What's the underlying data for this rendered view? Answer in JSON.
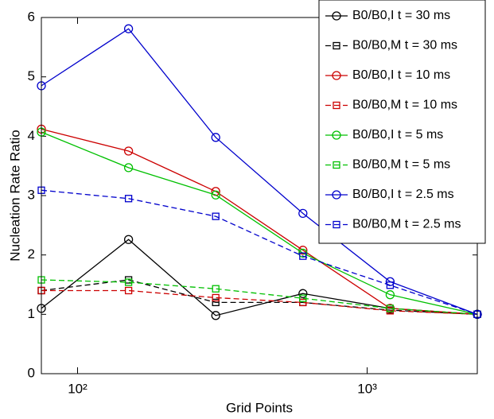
{
  "chart_data": {
    "type": "line",
    "x_label": "Grid Points",
    "y_label": "Nucleation Rate Ratio",
    "x": [
      75,
      150,
      300,
      600,
      1200,
      2400
    ],
    "xlim": [
      75,
      2400
    ],
    "xscale": "log",
    "xticks": [
      {
        "value": 100,
        "label": "10²"
      },
      {
        "value": 1000,
        "label": "10³"
      }
    ],
    "ylim": [
      0,
      6
    ],
    "yticks": [
      0,
      1,
      2,
      3,
      4,
      5,
      6
    ],
    "legend": "upper right",
    "series": [
      {
        "name": "B0/B0,I t = 30 ms",
        "color": "#000000",
        "marker": "circle",
        "dash": false,
        "values": [
          1.1,
          2.26,
          0.98,
          1.35,
          1.1,
          1.0
        ]
      },
      {
        "name": "B0/B0,M t = 30 ms",
        "color": "#000000",
        "marker": "square",
        "dash": true,
        "values": [
          1.4,
          1.58,
          1.2,
          1.2,
          1.07,
          1.0
        ]
      },
      {
        "name": "B0/B0,I t = 10 ms",
        "color": "#cc0000",
        "marker": "circle",
        "dash": false,
        "values": [
          4.12,
          3.75,
          3.07,
          2.08,
          1.1,
          1.0
        ]
      },
      {
        "name": "B0/B0,M t = 10 ms",
        "color": "#cc0000",
        "marker": "square",
        "dash": true,
        "values": [
          1.4,
          1.4,
          1.28,
          1.2,
          1.06,
          1.0
        ]
      },
      {
        "name": "B0/B0,I t = 5 ms",
        "color": "#00c000",
        "marker": "circle",
        "dash": false,
        "values": [
          4.07,
          3.47,
          3.01,
          2.03,
          1.33,
          1.0
        ]
      },
      {
        "name": "B0/B0,M t = 5 ms",
        "color": "#00c000",
        "marker": "square",
        "dash": true,
        "values": [
          1.58,
          1.54,
          1.43,
          1.27,
          1.1,
          1.0
        ]
      },
      {
        "name": "B0/B0,I t = 2.5 ms",
        "color": "#0000cc",
        "marker": "circle",
        "dash": false,
        "values": [
          4.85,
          5.81,
          3.98,
          2.7,
          1.55,
          1.0
        ]
      },
      {
        "name": "B0/B0,M t = 2.5 ms",
        "color": "#0000cc",
        "marker": "square",
        "dash": true,
        "values": [
          3.09,
          2.95,
          2.65,
          1.98,
          1.49,
          1.0
        ]
      }
    ]
  }
}
